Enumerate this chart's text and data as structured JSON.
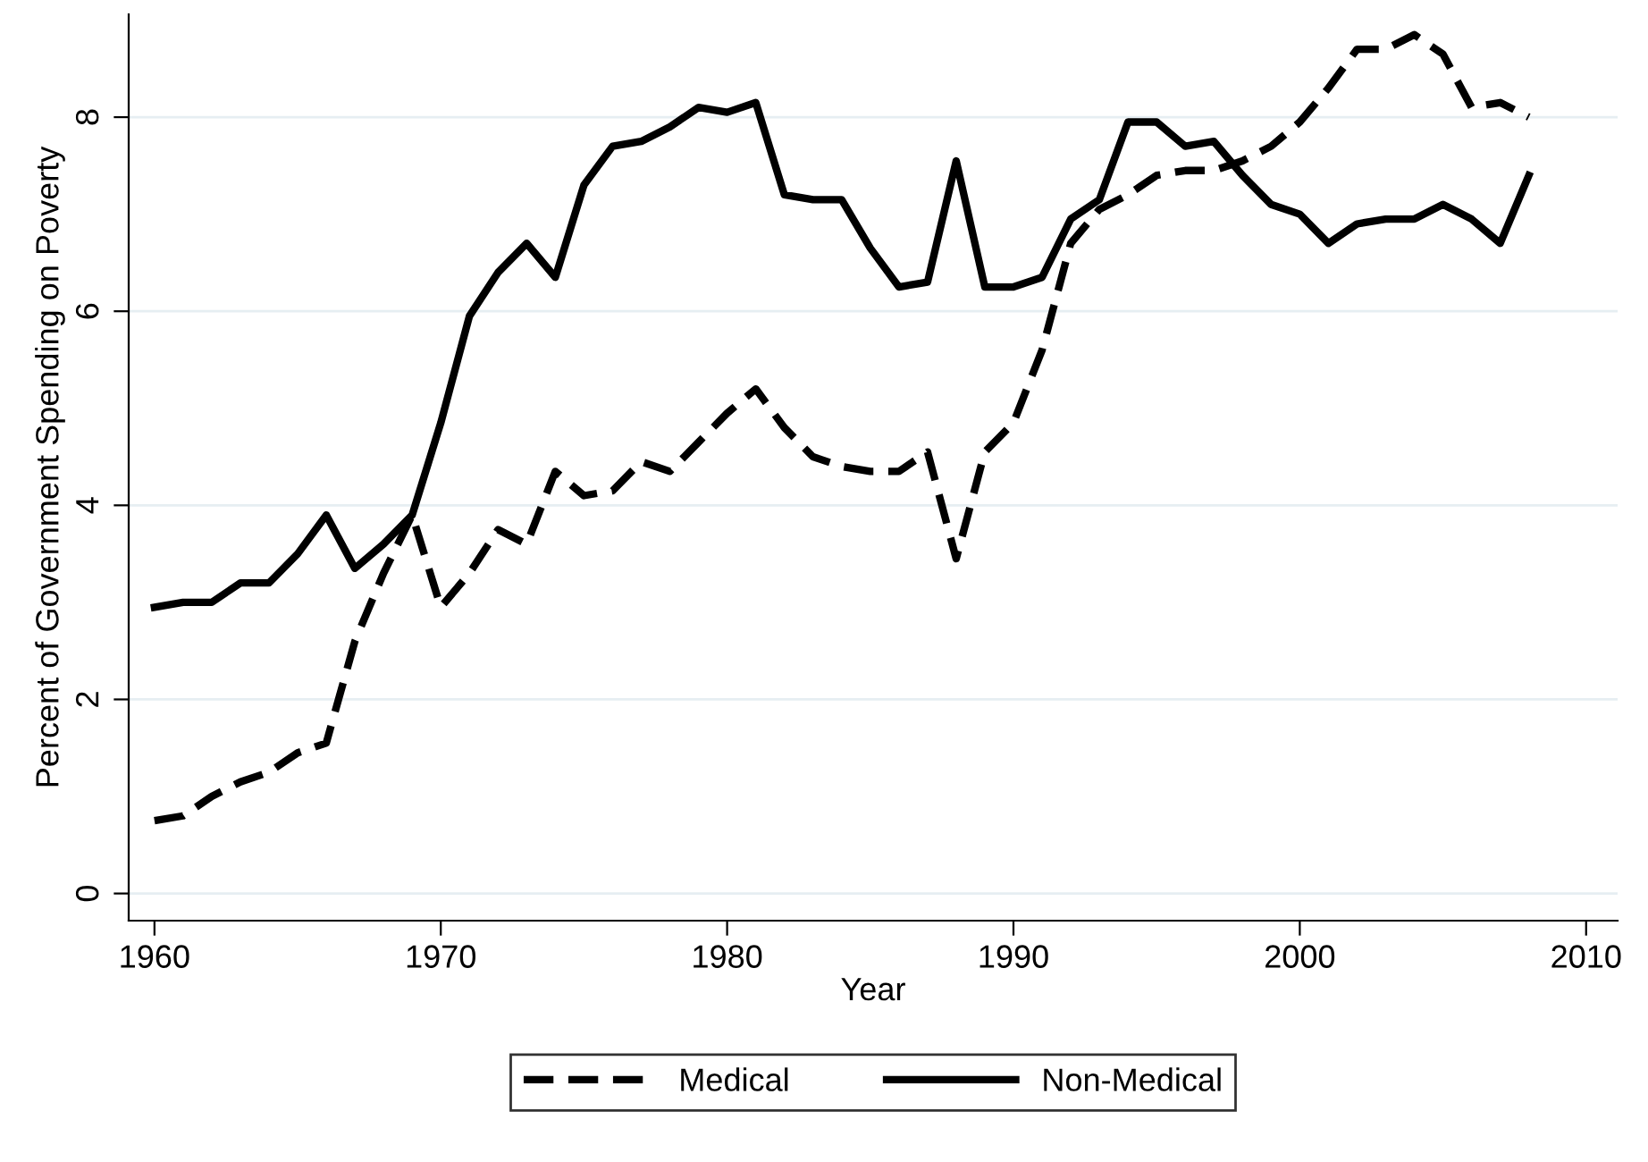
{
  "chart_data": {
    "type": "line",
    "xlabel": "Year",
    "ylabel": "Percent of Government Spending on Poverty",
    "x": [
      1960,
      1961,
      1962,
      1963,
      1964,
      1965,
      1966,
      1967,
      1968,
      1969,
      1970,
      1971,
      1972,
      1973,
      1974,
      1975,
      1976,
      1977,
      1978,
      1979,
      1980,
      1981,
      1982,
      1983,
      1984,
      1985,
      1986,
      1987,
      1988,
      1989,
      1990,
      1991,
      1992,
      1993,
      1994,
      1995,
      1996,
      1997,
      1998,
      1999,
      2000,
      2001,
      2002,
      2003,
      2004,
      2005,
      2006,
      2007,
      2008
    ],
    "series": [
      {
        "name": "Medical",
        "color": "#000000",
        "line_style": "dashed",
        "values": [
          0.75,
          0.8,
          1.0,
          1.15,
          1.25,
          1.45,
          1.55,
          2.6,
          3.3,
          3.9,
          2.95,
          3.3,
          3.75,
          3.6,
          4.35,
          4.1,
          4.15,
          4.45,
          4.35,
          4.65,
          4.95,
          5.2,
          4.8,
          4.5,
          4.4,
          4.35,
          4.35,
          4.55,
          3.45,
          4.55,
          4.85,
          5.6,
          6.7,
          7.05,
          7.2,
          7.4,
          7.45,
          7.45,
          7.55,
          7.7,
          7.95,
          8.3,
          8.7,
          8.7,
          8.85,
          8.65,
          8.1,
          8.15,
          8.0
        ]
      },
      {
        "name": "Non-Medical",
        "color": "#000000",
        "line_style": "solid",
        "values": [
          2.95,
          3.0,
          3.0,
          3.2,
          3.2,
          3.5,
          3.9,
          3.35,
          3.6,
          3.9,
          4.85,
          5.95,
          6.4,
          6.7,
          6.35,
          7.3,
          7.7,
          7.75,
          7.9,
          8.1,
          8.05,
          8.15,
          7.2,
          7.15,
          7.15,
          6.65,
          6.25,
          6.3,
          7.55,
          6.25,
          6.25,
          6.35,
          6.95,
          7.15,
          7.95,
          7.95,
          7.7,
          7.75,
          7.4,
          7.1,
          7.0,
          6.7,
          6.9,
          6.95,
          6.95,
          7.1,
          6.95,
          6.7,
          7.4
        ]
      }
    ],
    "xlim": [
      1959.1,
      2011.1
    ],
    "xticks": [
      1960,
      1970,
      1980,
      1990,
      2000,
      2010
    ],
    "ylim": [
      -0.28,
      9.06
    ],
    "yticks": [
      0,
      2,
      4,
      6,
      8
    ],
    "grid": "y",
    "legend": "bottom",
    "marker": "none"
  }
}
